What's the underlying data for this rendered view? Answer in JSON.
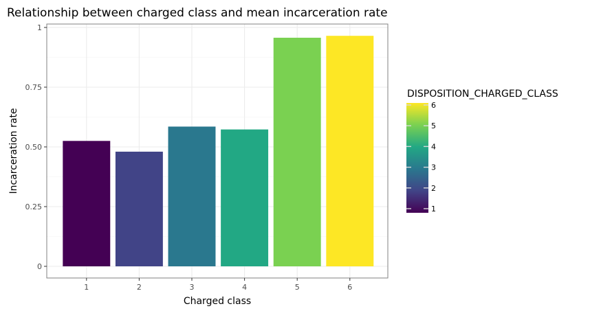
{
  "chart_data": {
    "type": "bar",
    "title": "Relationship between charged class and mean incarceration rate",
    "xlabel": "Charged class",
    "ylabel": "Incarceration rate",
    "categories": [
      "1",
      "2",
      "3",
      "4",
      "5",
      "6"
    ],
    "values": [
      0.525,
      0.48,
      0.585,
      0.573,
      0.957,
      0.965
    ],
    "bar_colors": [
      "#440154",
      "#414487",
      "#2a788e",
      "#22a884",
      "#7ad151",
      "#fde725"
    ],
    "ylim": [
      0,
      1
    ],
    "yticks": [
      0,
      0.25,
      0.5,
      0.75,
      1
    ],
    "ytick_labels": [
      "0",
      "0.25",
      "0.50",
      "0.75",
      "1"
    ],
    "grid": true,
    "legend": {
      "title": "DISPOSITION_CHARGED_CLASS",
      "placement": "right",
      "range": [
        1,
        6
      ],
      "ticks": [
        "1",
        "2",
        "3",
        "4",
        "5",
        "6"
      ],
      "gradient": [
        "#440154",
        "#414487",
        "#2a788e",
        "#22a884",
        "#7ad151",
        "#fde725"
      ]
    }
  }
}
